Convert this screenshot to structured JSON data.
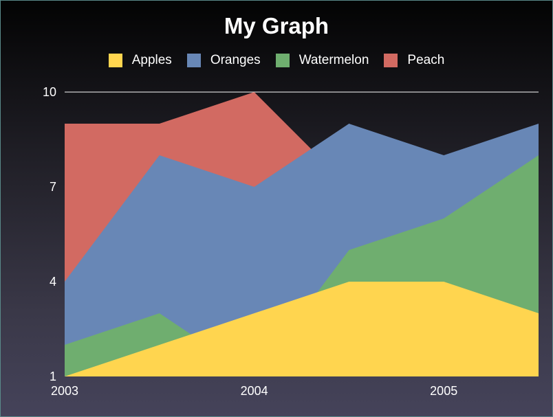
{
  "chart_data": {
    "type": "area",
    "title": "My Graph",
    "stacked": false,
    "x": [
      2003,
      2003.5,
      2004,
      2004.5,
      2005,
      2005.5
    ],
    "x_ticks": [
      "2003",
      "2004",
      "2005"
    ],
    "y_ticks": [
      "1",
      "4",
      "7",
      "10"
    ],
    "ylim": [
      1,
      10
    ],
    "xlim": [
      2003,
      2005.5
    ],
    "grid": "top line only",
    "legend_position": "top",
    "series": [
      {
        "name": "Apples",
        "color": "#ffd54f",
        "values": [
          1,
          2,
          3,
          4,
          4,
          3
        ]
      },
      {
        "name": "Oranges",
        "color": "#6887b6",
        "values": [
          4,
          8,
          7,
          9,
          8,
          9
        ]
      },
      {
        "name": "Watermelon",
        "color": "#6fae6f",
        "values": [
          2,
          3,
          1,
          5,
          6,
          8
        ]
      },
      {
        "name": "Peach",
        "color": "#d26a62",
        "values": [
          9,
          9,
          10,
          7,
          5,
          2
        ]
      }
    ],
    "draw_order": [
      "Peach",
      "Oranges",
      "Watermelon",
      "Apples"
    ]
  }
}
